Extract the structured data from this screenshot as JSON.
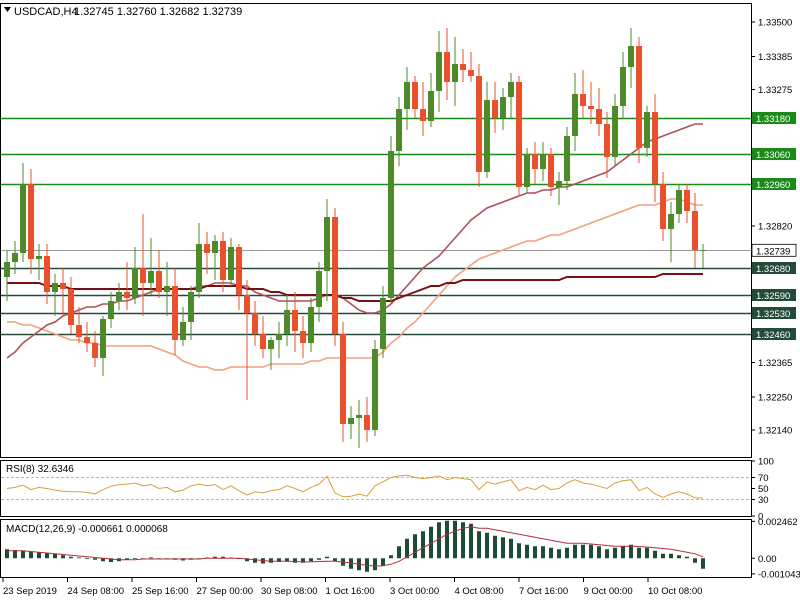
{
  "header": {
    "symbol_tf": "USDCAD,H4",
    "ohlc": "1.32745 1.32760 1.32682 1.32739"
  },
  "colors": {
    "bull": "#4e8a2a",
    "bear": "#e8512c",
    "ma_fast": "#f4a07e",
    "ma_mid": "#b0505a",
    "ma_slow": "#7a0f12",
    "level_green": "#1a8a1a",
    "level_dark": "#244a3a",
    "rsi": "#d8a03a",
    "macd_hist": "#1e4a38",
    "macd_signal": "#b0303c",
    "grid_dash": "#b9b9b9",
    "axis": "#000000"
  },
  "chart_data": [
    {
      "type": "candlestick",
      "panel": "main",
      "ylim": [
        1.3205,
        1.3356
      ],
      "price_ticks": [
        "1.33500",
        "1.33385",
        "1.33275",
        "1.33180",
        "1.33060",
        "1.32960",
        "1.32820",
        "1.32739",
        "1.32680",
        "1.32590",
        "1.32530",
        "1.32460",
        "1.32365",
        "1.32250",
        "1.32140"
      ],
      "levels": [
        {
          "value": 1.3318,
          "label": "1.33180",
          "kind": "green"
        },
        {
          "value": 1.3306,
          "label": "1.33060",
          "kind": "green"
        },
        {
          "value": 1.3296,
          "label": "1.32960",
          "kind": "green"
        },
        {
          "value": 1.3268,
          "label": "1.32680",
          "kind": "dark"
        },
        {
          "value": 1.3259,
          "label": "1.32590",
          "kind": "dark"
        },
        {
          "value": 1.3253,
          "label": "1.32530",
          "kind": "dark"
        },
        {
          "value": 1.3246,
          "label": "1.32460",
          "kind": "dark"
        }
      ],
      "current_price": {
        "value": 1.32739,
        "label": "1.32739"
      },
      "candles": [
        [
          1.3265,
          1.3274,
          1.3257,
          1.327
        ],
        [
          1.327,
          1.3277,
          1.3266,
          1.3273
        ],
        [
          1.3273,
          1.3303,
          1.327,
          1.3296
        ],
        [
          1.3296,
          1.3301,
          1.3266,
          1.3271
        ],
        [
          1.3271,
          1.3276,
          1.3264,
          1.3272
        ],
        [
          1.3272,
          1.3276,
          1.3256,
          1.326
        ],
        [
          1.326,
          1.3266,
          1.3252,
          1.3263
        ],
        [
          1.3263,
          1.3268,
          1.3252,
          1.3261
        ],
        [
          1.3261,
          1.3265,
          1.3246,
          1.3249
        ],
        [
          1.3249,
          1.3255,
          1.3243,
          1.3245
        ],
        [
          1.3245,
          1.325,
          1.324,
          1.3243
        ],
        [
          1.3243,
          1.3247,
          1.3235,
          1.3238
        ],
        [
          1.3238,
          1.3252,
          1.3232,
          1.3251
        ],
        [
          1.3251,
          1.326,
          1.3248,
          1.3257
        ],
        [
          1.3257,
          1.3263,
          1.3254,
          1.326
        ],
        [
          1.326,
          1.327,
          1.3254,
          1.3258
        ],
        [
          1.3258,
          1.3275,
          1.3256,
          1.3268
        ],
        [
          1.3268,
          1.3286,
          1.3252,
          1.3263
        ],
        [
          1.3263,
          1.3278,
          1.3259,
          1.3267
        ],
        [
          1.3267,
          1.3274,
          1.3258,
          1.326
        ],
        [
          1.326,
          1.327,
          1.3252,
          1.3262
        ],
        [
          1.3262,
          1.3268,
          1.3239,
          1.3244
        ],
        [
          1.3244,
          1.3255,
          1.3242,
          1.325
        ],
        [
          1.325,
          1.3262,
          1.3244,
          1.326
        ],
        [
          1.326,
          1.3283,
          1.3258,
          1.3276
        ],
        [
          1.3276,
          1.328,
          1.3266,
          1.3273
        ],
        [
          1.3273,
          1.3279,
          1.3264,
          1.3277
        ],
        [
          1.3277,
          1.328,
          1.326,
          1.3264
        ],
        [
          1.3264,
          1.3278,
          1.3262,
          1.3275
        ],
        [
          1.3275,
          1.3276,
          1.3254,
          1.3259
        ],
        [
          1.3259,
          1.3264,
          1.3224,
          1.3253
        ],
        [
          1.3253,
          1.3257,
          1.3242,
          1.3246
        ],
        [
          1.3246,
          1.3252,
          1.3238,
          1.3241
        ],
        [
          1.3241,
          1.3245,
          1.3234,
          1.3244
        ],
        [
          1.3244,
          1.325,
          1.3238,
          1.3246
        ],
        [
          1.3246,
          1.3259,
          1.3242,
          1.3254
        ],
        [
          1.3254,
          1.326,
          1.324,
          1.3247
        ],
        [
          1.3247,
          1.3252,
          1.3238,
          1.3243
        ],
        [
          1.3243,
          1.3258,
          1.324,
          1.3255
        ],
        [
          1.3255,
          1.327,
          1.325,
          1.3267
        ],
        [
          1.3267,
          1.3291,
          1.3257,
          1.3285
        ],
        [
          1.3285,
          1.3288,
          1.3242,
          1.3246
        ],
        [
          1.3246,
          1.325,
          1.321,
          1.3216
        ],
        [
          1.3216,
          1.3222,
          1.3211,
          1.3218
        ],
        [
          1.3218,
          1.3224,
          1.3208,
          1.3219
        ],
        [
          1.3219,
          1.3225,
          1.321,
          1.3214
        ],
        [
          1.3214,
          1.3244,
          1.3212,
          1.3241
        ],
        [
          1.3241,
          1.3262,
          1.3238,
          1.3258
        ],
        [
          1.3258,
          1.3312,
          1.3256,
          1.3307
        ],
        [
          1.3307,
          1.3325,
          1.3302,
          1.3321
        ],
        [
          1.3321,
          1.3335,
          1.3314,
          1.333
        ],
        [
          1.333,
          1.3332,
          1.3318,
          1.3321
        ],
        [
          1.3321,
          1.333,
          1.3312,
          1.3317
        ],
        [
          1.3317,
          1.3333,
          1.3315,
          1.3327
        ],
        [
          1.3327,
          1.3347,
          1.332,
          1.334
        ],
        [
          1.334,
          1.3348,
          1.3324,
          1.333
        ],
        [
          1.333,
          1.3345,
          1.3322,
          1.3336
        ],
        [
          1.3336,
          1.3341,
          1.333,
          1.3334
        ],
        [
          1.3334,
          1.334,
          1.333,
          1.3332
        ],
        [
          1.3332,
          1.3336,
          1.3295,
          1.33
        ],
        [
          1.33,
          1.333,
          1.3298,
          1.3324
        ],
        [
          1.3324,
          1.333,
          1.3313,
          1.3318
        ],
        [
          1.3318,
          1.3328,
          1.3314,
          1.3325
        ],
        [
          1.3325,
          1.3333,
          1.3318,
          1.333
        ],
        [
          1.333,
          1.3332,
          1.3292,
          1.3295
        ],
        [
          1.3295,
          1.3308,
          1.3293,
          1.3306
        ],
        [
          1.3306,
          1.331,
          1.3296,
          1.3301
        ],
        [
          1.3301,
          1.331,
          1.3297,
          1.3306
        ],
        [
          1.3306,
          1.3308,
          1.3292,
          1.3295
        ],
        [
          1.3295,
          1.33,
          1.3289,
          1.3297
        ],
        [
          1.3297,
          1.3315,
          1.3294,
          1.3312
        ],
        [
          1.3312,
          1.3333,
          1.3307,
          1.3326
        ],
        [
          1.3326,
          1.3334,
          1.3318,
          1.3322
        ],
        [
          1.3322,
          1.333,
          1.3316,
          1.3321
        ],
        [
          1.3321,
          1.3328,
          1.3312,
          1.3316
        ],
        [
          1.3316,
          1.332,
          1.3298,
          1.3305
        ],
        [
          1.3305,
          1.3326,
          1.3302,
          1.3322
        ],
        [
          1.3322,
          1.334,
          1.3318,
          1.3335
        ],
        [
          1.3335,
          1.3348,
          1.3328,
          1.3342
        ],
        [
          1.3342,
          1.3345,
          1.3303,
          1.3308
        ],
        [
          1.3308,
          1.3322,
          1.3305,
          1.332
        ],
        [
          1.332,
          1.3326,
          1.329,
          1.3296
        ],
        [
          1.3296,
          1.33,
          1.3277,
          1.3281
        ],
        [
          1.3281,
          1.329,
          1.327,
          1.3286
        ],
        [
          1.3286,
          1.3296,
          1.3283,
          1.3294
        ],
        [
          1.3294,
          1.3296,
          1.3283,
          1.3287
        ],
        [
          1.3287,
          1.3293,
          1.3268,
          1.3274
        ],
        [
          1.3274,
          1.3276,
          1.3268,
          1.3274
        ]
      ],
      "ma_fast": [
        1.325,
        1.325,
        1.3249,
        1.3249,
        1.3248,
        1.3247,
        1.3246,
        1.3245,
        1.3244,
        1.3244,
        1.3243,
        1.3243,
        1.3242,
        1.3242,
        1.3242,
        1.3242,
        1.3242,
        1.3242,
        1.3242,
        1.3241,
        1.324,
        1.3239,
        1.3237,
        1.3236,
        1.3235,
        1.3235,
        1.3234,
        1.3234,
        1.3235,
        1.3235,
        1.3235,
        1.3235,
        1.3235,
        1.3236,
        1.3236,
        1.3236,
        1.3236,
        1.3236,
        1.3237,
        1.3237,
        1.3238,
        1.3238,
        1.3238,
        1.3238,
        1.3238,
        1.3238,
        1.3238,
        1.324,
        1.3243,
        1.3245,
        1.3248,
        1.325,
        1.3253,
        1.3256,
        1.3259,
        1.3262,
        1.3265,
        1.3267,
        1.3269,
        1.3271,
        1.3272,
        1.3273,
        1.3274,
        1.3275,
        1.3276,
        1.3277,
        1.3277,
        1.3278,
        1.3279,
        1.3279,
        1.328,
        1.3281,
        1.3282,
        1.3283,
        1.3284,
        1.3285,
        1.3286,
        1.3287,
        1.3288,
        1.3289,
        1.3289,
        1.3289,
        1.329,
        1.3291,
        1.3291,
        1.329,
        1.3289,
        1.3289
      ],
      "ma_mid": [
        1.3238,
        1.324,
        1.3243,
        1.3245,
        1.3247,
        1.3249,
        1.325,
        1.3252,
        1.3253,
        1.3254,
        1.3255,
        1.3255,
        1.3256,
        1.3256,
        1.3257,
        1.3257,
        1.3258,
        1.3259,
        1.326,
        1.3261,
        1.3261,
        1.3261,
        1.3261,
        1.3261,
        1.3262,
        1.3262,
        1.3263,
        1.3263,
        1.3263,
        1.3262,
        1.3262,
        1.326,
        1.3259,
        1.3258,
        1.3257,
        1.3257,
        1.3257,
        1.3257,
        1.3257,
        1.3258,
        1.3259,
        1.3259,
        1.3258,
        1.3256,
        1.3254,
        1.3253,
        1.3253,
        1.3254,
        1.3256,
        1.3259,
        1.3262,
        1.3265,
        1.3268,
        1.327,
        1.3272,
        1.3275,
        1.3278,
        1.3281,
        1.3284,
        1.3286,
        1.3288,
        1.3289,
        1.329,
        1.3291,
        1.3292,
        1.3293,
        1.3293,
        1.3294,
        1.3294,
        1.3295,
        1.3295,
        1.3296,
        1.3297,
        1.3298,
        1.3299,
        1.33,
        1.3302,
        1.3304,
        1.3306,
        1.3308,
        1.331,
        1.3311,
        1.3312,
        1.3313,
        1.3314,
        1.3315,
        1.3316,
        1.3316
      ],
      "ma_slow": [
        1.3263,
        1.3263,
        1.3263,
        1.3263,
        1.3263,
        1.3262,
        1.3262,
        1.3262,
        1.3261,
        1.3261,
        1.3261,
        1.3261,
        1.3261,
        1.3261,
        1.3261,
        1.3261,
        1.3261,
        1.3261,
        1.3261,
        1.3261,
        1.3261,
        1.3261,
        1.3261,
        1.3261,
        1.3261,
        1.3262,
        1.3262,
        1.3262,
        1.3262,
        1.3262,
        1.3261,
        1.3261,
        1.3261,
        1.326,
        1.326,
        1.3259,
        1.3259,
        1.3259,
        1.3259,
        1.3259,
        1.3259,
        1.3259,
        1.3258,
        1.3258,
        1.3257,
        1.3257,
        1.3257,
        1.3257,
        1.3257,
        1.3258,
        1.3259,
        1.326,
        1.3261,
        1.3262,
        1.3262,
        1.3263,
        1.3263,
        1.3264,
        1.3264,
        1.3264,
        1.3264,
        1.3264,
        1.3264,
        1.3264,
        1.3264,
        1.3264,
        1.3264,
        1.3264,
        1.3264,
        1.3264,
        1.3265,
        1.3265,
        1.3265,
        1.3265,
        1.3265,
        1.3265,
        1.3265,
        1.3265,
        1.3265,
        1.3265,
        1.3265,
        1.3265,
        1.3266,
        1.3266,
        1.3266,
        1.3266,
        1.3266,
        1.3266
      ]
    },
    {
      "type": "line",
      "panel": "rsi",
      "name": "RSI(8)",
      "label": "RSI(8) 32.6346",
      "ylim": [
        0,
        100
      ],
      "ticks": [
        "100",
        "70",
        "50",
        "30",
        "0"
      ],
      "levels": [
        70,
        30
      ],
      "values": [
        50,
        52,
        56,
        48,
        52,
        50,
        47,
        45,
        44,
        44,
        43,
        40,
        48,
        54,
        57,
        58,
        60,
        55,
        57,
        50,
        52,
        44,
        47,
        55,
        58,
        55,
        57,
        48,
        55,
        46,
        38,
        44,
        42,
        46,
        48,
        55,
        50,
        44,
        52,
        58,
        72,
        42,
        35,
        36,
        40,
        36,
        55,
        62,
        70,
        73,
        74,
        70,
        68,
        70,
        73,
        66,
        70,
        68,
        66,
        48,
        62,
        58,
        62,
        66,
        46,
        52,
        48,
        56,
        48,
        50,
        60,
        66,
        60,
        58,
        54,
        50,
        60,
        64,
        66,
        46,
        52,
        40,
        34,
        40,
        44,
        40,
        33,
        32.6
      ]
    },
    {
      "type": "bar+line",
      "panel": "macd",
      "name": "MACD(12,26,9)",
      "label": "MACD(12,26,9) -0.000661 0.000068",
      "ylim": [
        -0.00125,
        0.00255
      ],
      "ticks": [
        "0.002462",
        "0.00",
        "-0.001043"
      ],
      "histogram": [
        0.0006,
        0.00055,
        0.0005,
        0.00045,
        0.0004,
        0.00035,
        0.0003,
        0.0002,
        0.0001,
        5e-05,
        0.0,
        -0.0001,
        -0.0002,
        -0.00025,
        -0.0002,
        -0.0001,
        -5e-05,
        0.0,
        5e-05,
        0.0,
        -5e-05,
        -0.0001,
        -0.00015,
        -0.0001,
        0.0,
        5e-05,
        0.0001,
        0.0001,
        5e-05,
        0.0,
        -0.0002,
        -0.0003,
        -0.00035,
        -0.0003,
        -0.00025,
        -0.0002,
        -0.0003,
        -0.0003,
        -0.0002,
        -0.0001,
        0.0001,
        -0.0002,
        -0.0005,
        -0.0007,
        -0.0008,
        -0.0009,
        -0.0008,
        -0.0005,
        0.0002,
        0.0008,
        0.0013,
        0.0016,
        0.0018,
        0.0021,
        0.0024,
        0.0025,
        0.0025,
        0.0024,
        0.0023,
        0.0018,
        0.0017,
        0.0015,
        0.0014,
        0.0013,
        0.001,
        0.0009,
        0.0008,
        0.0008,
        0.0007,
        0.0006,
        0.0007,
        0.0009,
        0.0009,
        0.0009,
        0.0008,
        0.0006,
        0.0007,
        0.0008,
        0.0009,
        0.0007,
        0.0007,
        0.0005,
        0.0003,
        0.0003,
        0.0002,
        0.0001,
        -0.0003,
        -0.0007
      ],
      "signal": [
        0.0005,
        0.0005,
        0.0005,
        0.00045,
        0.0004,
        0.00035,
        0.0003,
        0.00025,
        0.0002,
        0.00015,
        0.0001,
        5e-05,
        0.0,
        -5e-05,
        -0.0001,
        -0.0001,
        -0.0001,
        -5e-05,
        -5e-05,
        -5e-05,
        -5e-05,
        -5e-05,
        -5e-05,
        -5e-05,
        -5e-05,
        0.0,
        0.0,
        0.0,
        0.0,
        0.0,
        -5e-05,
        -0.0001,
        -0.00015,
        -0.0002,
        -0.0002,
        -0.0002,
        -0.00022,
        -0.00024,
        -0.00024,
        -0.00022,
        -0.0002,
        -0.0002,
        -0.00025,
        -0.00032,
        -0.0004,
        -0.00048,
        -0.00052,
        -0.0005,
        -0.0004,
        -0.0002,
        0.0001,
        0.0004,
        0.0007,
        0.001,
        0.0013,
        0.0016,
        0.0018,
        0.002,
        0.0021,
        0.002,
        0.002,
        0.0019,
        0.0018,
        0.0017,
        0.0016,
        0.0015,
        0.0014,
        0.0013,
        0.0012,
        0.0011,
        0.001,
        0.001,
        0.001,
        0.00095,
        0.0009,
        0.00085,
        0.0008,
        0.0008,
        0.0008,
        0.00078,
        0.00075,
        0.0007,
        0.00065,
        0.0006,
        0.0005,
        0.0004,
        0.0003,
        0.0001
      ]
    }
  ],
  "time_labels": [
    "23 Sep 2019",
    "24 Sep 08:00",
    "25 Sep 16:00",
    "27 Sep 00:00",
    "30 Sep 08:00",
    "1 Oct 16:00",
    "3 Oct 00:00",
    "4 Oct 08:00",
    "7 Oct 16:00",
    "9 Oct 00:00",
    "10 Oct 08:00"
  ]
}
